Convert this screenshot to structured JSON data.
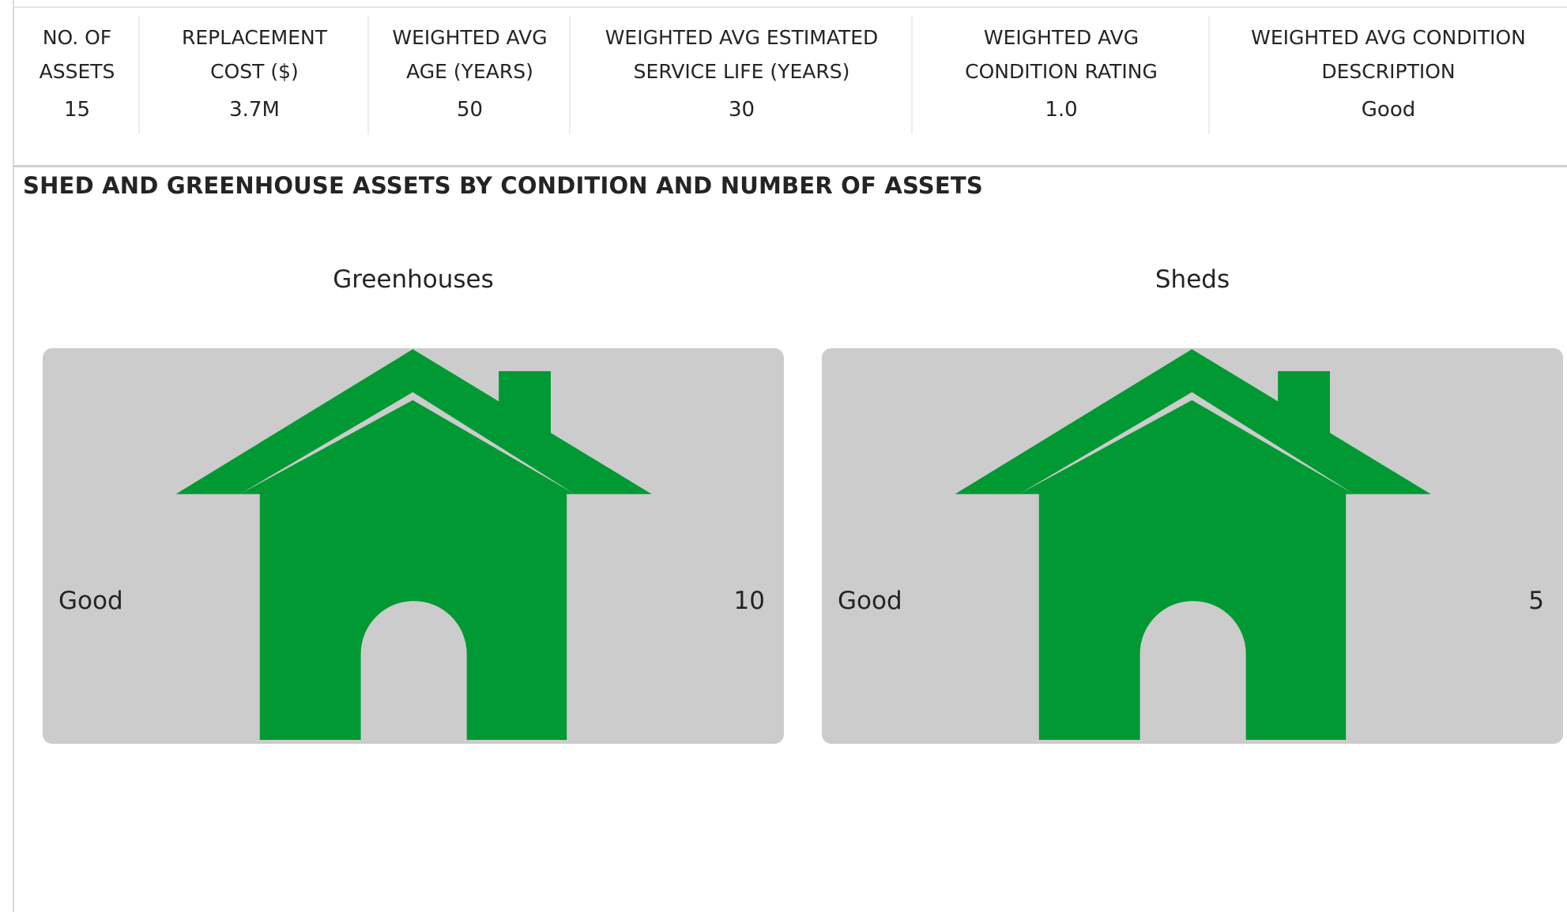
{
  "kpis": [
    {
      "label": "NO. OF ASSETS",
      "value": "15"
    },
    {
      "label": "REPLACEMENT COST ($)",
      "value": "3.7M"
    },
    {
      "label": "WEIGHTED AVG AGE (YEARS)",
      "value": "50"
    },
    {
      "label": "WEIGHTED AVG ESTIMATED SERVICE LIFE (YEARS)",
      "value": "30"
    },
    {
      "label": "WEIGHTED AVG CONDITION RATING",
      "value": "1.0"
    },
    {
      "label": "WEIGHTED AVG CONDITION DESCRIPTION",
      "value": "Good"
    }
  ],
  "section": {
    "title": "SHED AND GREENHOUSE ASSETS BY CONDITION AND NUMBER OF ASSETS"
  },
  "panels": [
    {
      "title": "Greenhouses",
      "condition": "Good",
      "count": "10"
    },
    {
      "title": "Sheds",
      "condition": "Good",
      "count": "5"
    }
  ]
}
